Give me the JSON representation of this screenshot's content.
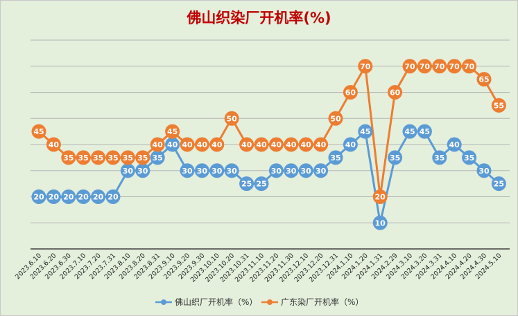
{
  "chart_data": {
    "type": "line",
    "title": "佛山织染厂开机率(%)",
    "x": [
      "2023.6.10",
      "2023.6.20",
      "2023.6.30",
      "2023.7.10",
      "2023.7.20",
      "2023.7.31",
      "2023.8.10",
      "2023.8.20",
      "2023.8.31",
      "2023.9.10",
      "2023.9.20",
      "2023.9.30",
      "2023.10.10",
      "2023.10.20",
      "2023.10.31",
      "2023.11.10",
      "2023.11.20",
      "2023.11.30",
      "2023.12.10",
      "2023.12.20",
      "2023.12.31",
      "2024.1.10",
      "2024.1.20",
      "2024.1.31",
      "2024.2.29",
      "2024.3.10",
      "2024.3.20",
      "2024.3.31",
      "2024.4.10",
      "2024.4.20",
      "2024.4.30",
      "2024.5.10"
    ],
    "series": [
      {
        "name": "佛山织厂开机率（%）",
        "color": "#5b9bd5",
        "values": [
          20,
          20,
          20,
          20,
          20,
          20,
          30,
          30,
          35,
          40,
          30,
          30,
          30,
          30,
          25,
          25,
          30,
          30,
          30,
          30,
          35,
          40,
          45,
          10,
          35,
          45,
          45,
          35,
          40,
          35,
          30,
          25
        ]
      },
      {
        "name": "广东染厂开机率（%）",
        "color": "#ed7d31",
        "values": [
          45,
          40,
          35,
          35,
          35,
          35,
          35,
          35,
          40,
          45,
          40,
          40,
          40,
          50,
          40,
          40,
          40,
          40,
          40,
          40,
          50,
          60,
          70,
          20,
          60,
          70,
          70,
          70,
          70,
          70,
          65,
          55
        ]
      }
    ],
    "ylim": [
      0,
      80
    ],
    "grid": true,
    "legend": "bottom"
  }
}
